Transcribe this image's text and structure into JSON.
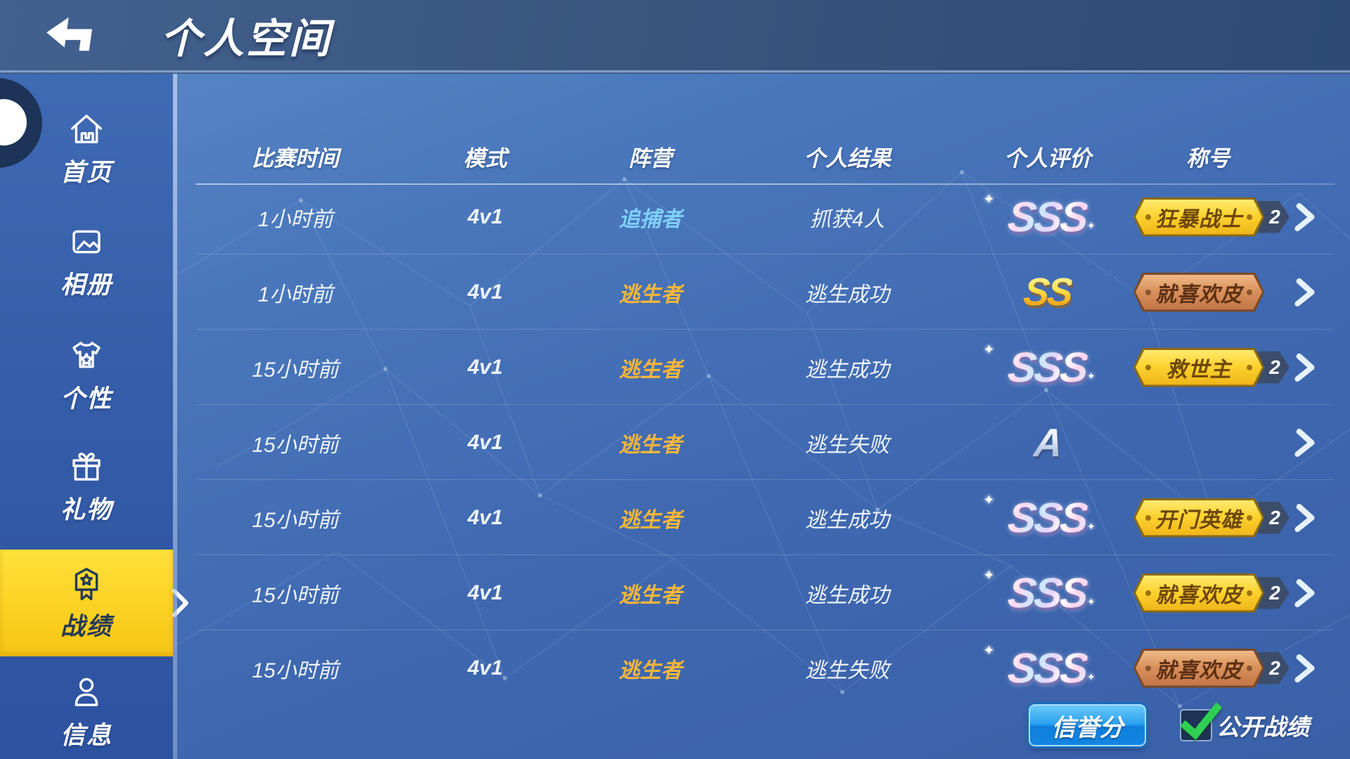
{
  "header": {
    "title": "个人空间"
  },
  "sidebar": {
    "items": [
      {
        "id": "home",
        "icon": "home-icon",
        "label": "首页",
        "selected": false
      },
      {
        "id": "album",
        "icon": "photo-icon",
        "label": "相册",
        "selected": false
      },
      {
        "id": "personality",
        "icon": "tshirt-icon",
        "label": "个性",
        "selected": false
      },
      {
        "id": "gifts",
        "icon": "gift-icon",
        "label": "礼物",
        "selected": false
      },
      {
        "id": "records",
        "icon": "medal-icon",
        "label": "战绩",
        "selected": true
      },
      {
        "id": "info",
        "icon": "person-icon",
        "label": "信息",
        "selected": false
      }
    ]
  },
  "table": {
    "columns": [
      "比赛时间",
      "模式",
      "阵营",
      "个人结果",
      "个人评价",
      "称号"
    ],
    "rows": [
      {
        "time": "1小时前",
        "mode": "4v1",
        "camp": "追捕者",
        "camp_type": "hunter",
        "result": "抓获4人",
        "rating": "SSS",
        "rating_style": "rainbow",
        "title": "狂暴战士",
        "title_style": "gold",
        "title_count": "2"
      },
      {
        "time": "1小时前",
        "mode": "4v1",
        "camp": "逃生者",
        "camp_type": "survivor",
        "result": "逃生成功",
        "rating": "SS",
        "rating_style": "gold",
        "title": "就喜欢皮",
        "title_style": "bronze",
        "title_count": ""
      },
      {
        "time": "15小时前",
        "mode": "4v1",
        "camp": "逃生者",
        "camp_type": "survivor",
        "result": "逃生成功",
        "rating": "SSS",
        "rating_style": "rainbow",
        "title": "救世主",
        "title_style": "gold",
        "title_count": "2"
      },
      {
        "time": "15小时前",
        "mode": "4v1",
        "camp": "逃生者",
        "camp_type": "survivor",
        "result": "逃生失败",
        "rating": "A",
        "rating_style": "silver",
        "title": "",
        "title_style": "none",
        "title_count": ""
      },
      {
        "time": "15小时前",
        "mode": "4v1",
        "camp": "逃生者",
        "camp_type": "survivor",
        "result": "逃生成功",
        "rating": "SSS",
        "rating_style": "rainbow",
        "title": "开门英雄",
        "title_style": "gold",
        "title_count": "2"
      },
      {
        "time": "15小时前",
        "mode": "4v1",
        "camp": "逃生者",
        "camp_type": "survivor",
        "result": "逃生成功",
        "rating": "SSS",
        "rating_style": "rainbow",
        "title": "就喜欢皮",
        "title_style": "gold",
        "title_count": "2"
      },
      {
        "time": "15小时前",
        "mode": "4v1",
        "camp": "逃生者",
        "camp_type": "survivor",
        "result": "逃生失败",
        "rating": "SSS",
        "rating_style": "rainbow",
        "title": "就喜欢皮",
        "title_style": "bronze",
        "title_count": "2"
      }
    ]
  },
  "footer": {
    "credit_button": "信誉分",
    "public_checkbox_label": "公开战绩",
    "public_checked": true
  },
  "colors": {
    "selected_tab_yellow": "#f8c916",
    "camp_hunter_blue": "#7ed0f7",
    "camp_survivor_orange": "#f6b63a",
    "credit_button_blue": "#1e96ec",
    "check_green": "#2ed052",
    "badge_gold": "#fcd22e",
    "badge_bronze": "#d99059",
    "count_tab_navy": "#3b4d6a"
  }
}
